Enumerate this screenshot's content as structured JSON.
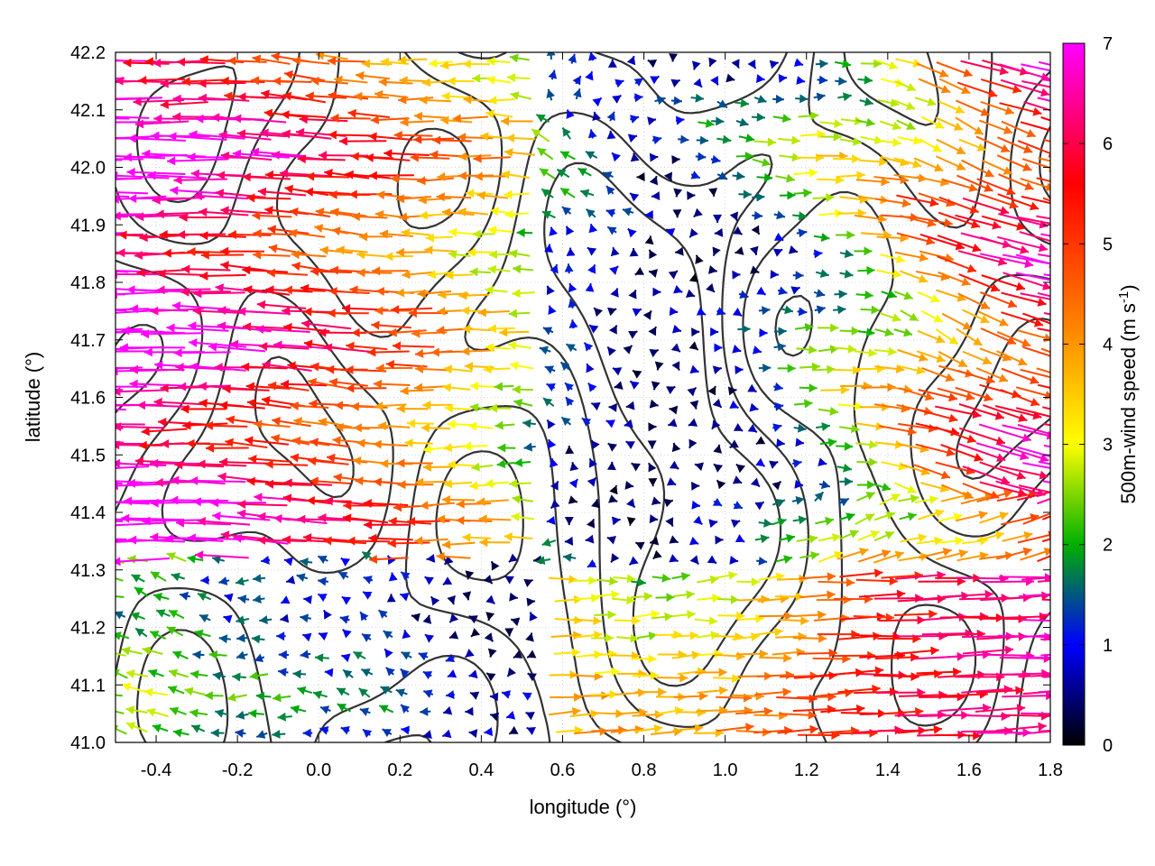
{
  "chart_data": {
    "type": "vector-field",
    "xlabel": "longitude (°)",
    "ylabel": "latitude (°)",
    "xlim": [
      -0.5,
      1.8
    ],
    "ylim": [
      41.0,
      42.2
    ],
    "x_ticks": [
      "-0.4",
      "-0.2",
      "0.0",
      "0.2",
      "0.4",
      "0.6",
      "0.8",
      "1.0",
      "1.2",
      "1.4",
      "1.6",
      "1.8"
    ],
    "x_tick_values": [
      -0.4,
      -0.2,
      0.0,
      0.2,
      0.4,
      0.6,
      0.8,
      1.0,
      1.2,
      1.4,
      1.6,
      1.8
    ],
    "y_ticks": [
      "41.0",
      "41.1",
      "41.2",
      "41.3",
      "41.4",
      "41.5",
      "41.6",
      "41.7",
      "41.8",
      "41.9",
      "42.0",
      "42.1",
      "42.2"
    ],
    "y_tick_values": [
      41.0,
      41.1,
      41.2,
      41.3,
      41.4,
      41.5,
      41.6,
      41.7,
      41.8,
      41.9,
      42.0,
      42.1,
      42.2
    ],
    "grid": true,
    "colorbar": {
      "label_main": "500m-wind speed (m s",
      "label_sup": "-1",
      "label_end": ")",
      "range": [
        0,
        7
      ],
      "ticks": [
        "0",
        "1",
        "2",
        "3",
        "4",
        "5",
        "6",
        "7"
      ],
      "tick_values": [
        0,
        1,
        2,
        3,
        4,
        5,
        6,
        7
      ],
      "colors": [
        "#000000",
        "#0000ff",
        "#00c000",
        "#ffff00",
        "#ff8000",
        "#ff0000",
        "#ff00ff"
      ]
    },
    "contour_color": "#333333"
  }
}
